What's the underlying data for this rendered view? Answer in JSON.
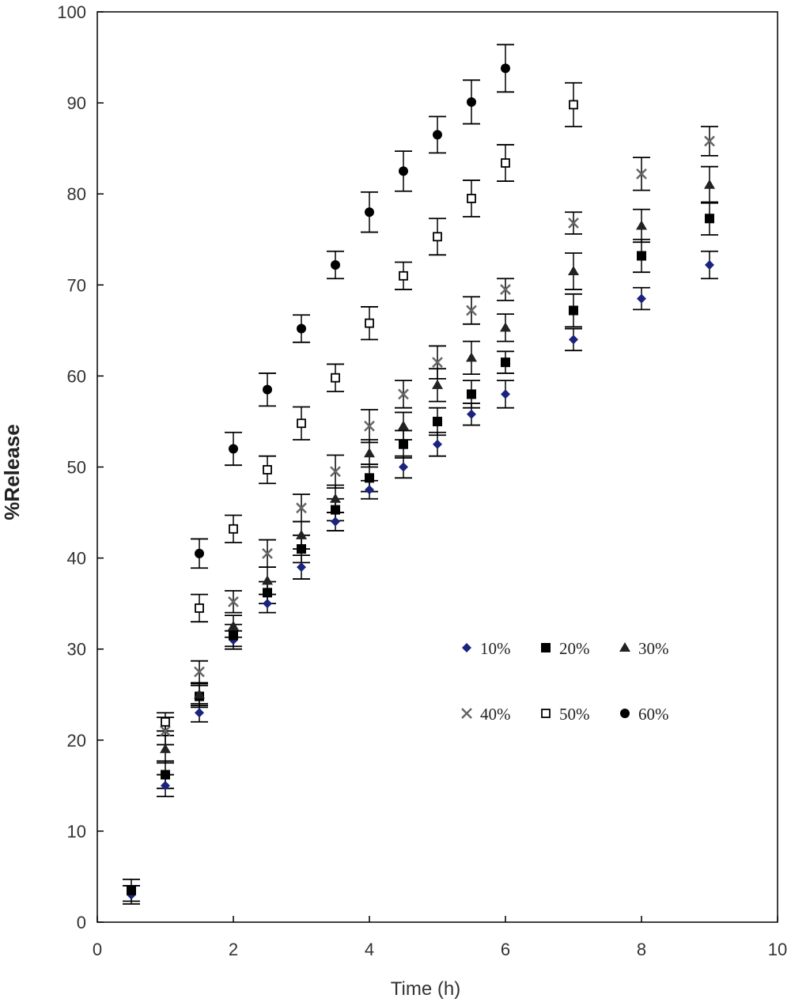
{
  "chart_data": {
    "type": "scatter",
    "title": "",
    "xlabel": "Time (h)",
    "ylabel": "%Release",
    "xlim": [
      0,
      10
    ],
    "ylim": [
      0,
      100
    ],
    "xticks": [
      0,
      2,
      4,
      6,
      8,
      10
    ],
    "yticks": [
      0,
      10,
      20,
      30,
      40,
      50,
      60,
      70,
      80,
      90,
      100
    ],
    "grid": false,
    "legend_position": "center-right",
    "series": [
      {
        "name": "10%",
        "marker": "diamond",
        "color": "#1a237e",
        "x": [
          0.5,
          1,
          1.5,
          2,
          2.5,
          3,
          3.5,
          4,
          4.5,
          5,
          5.5,
          6,
          7,
          8,
          9
        ],
        "y": [
          3,
          15,
          23,
          31,
          35,
          39,
          44,
          47.5,
          50,
          52.5,
          55.8,
          58,
          64,
          68.5,
          72.2
        ],
        "error": [
          1,
          1.2,
          1,
          1,
          1,
          1.3,
          1,
          1,
          1.2,
          1.3,
          1.2,
          1.5,
          1.2,
          1.2,
          1.5
        ]
      },
      {
        "name": "20%",
        "marker": "square",
        "color": "#000000",
        "x": [
          0.5,
          1,
          1.5,
          2,
          2.5,
          3,
          3.5,
          4,
          4.5,
          5,
          5.5,
          6,
          7,
          8,
          9
        ],
        "y": [
          3.5,
          16.2,
          24.8,
          31.5,
          36.2,
          41,
          45.3,
          48.8,
          52.5,
          55,
          58,
          61.5,
          67.2,
          73.2,
          77.3
        ],
        "error": [
          1.2,
          1.5,
          1.2,
          1.2,
          1.2,
          1.5,
          1.2,
          1.5,
          1.5,
          1.5,
          1.5,
          1.2,
          1.8,
          1.8,
          1.8
        ]
      },
      {
        "name": "30%",
        "marker": "triangle",
        "color": "#222222",
        "x": [
          1,
          1.5,
          2,
          2.5,
          3,
          3.5,
          4,
          4.5,
          5,
          5.5,
          6,
          7,
          8,
          9
        ],
        "y": [
          19,
          25,
          32.5,
          37.5,
          42.5,
          46.5,
          51.5,
          54.5,
          59,
          62,
          65.3,
          71.5,
          76.5,
          81
        ],
        "error": [
          1.5,
          1.2,
          1.2,
          1.5,
          1.5,
          1.5,
          1.5,
          1.5,
          1.8,
          1.8,
          1.5,
          2,
          1.8,
          2
        ]
      },
      {
        "name": "40%",
        "marker": "cross",
        "color": "#666666",
        "x": [
          1,
          1.5,
          2,
          2.5,
          3,
          3.5,
          4,
          4.5,
          5,
          5.5,
          6,
          7,
          8,
          9
        ],
        "y": [
          21,
          27.5,
          35.2,
          40.5,
          45.5,
          49.5,
          54.5,
          58,
          61.5,
          67.2,
          69.5,
          76.8,
          82.2,
          85.8
        ],
        "error": [
          1.5,
          1.2,
          1.2,
          1.5,
          1.5,
          1.8,
          1.8,
          1.5,
          1.8,
          1.5,
          1.2,
          1.2,
          1.8,
          1.6
        ]
      },
      {
        "name": "50%",
        "marker": "open-square",
        "color": "#000000",
        "x": [
          1,
          1.5,
          2,
          2.5,
          3,
          3.5,
          4,
          4.5,
          5,
          5.5,
          6,
          7
        ],
        "y": [
          22,
          34.5,
          43.2,
          49.7,
          54.8,
          59.8,
          65.8,
          71,
          75.3,
          79.5,
          83.4,
          89.8
        ],
        "error": [
          1,
          1.5,
          1.5,
          1.5,
          1.8,
          1.5,
          1.8,
          1.5,
          2,
          2,
          2,
          2.4
        ]
      },
      {
        "name": "60%",
        "marker": "circle",
        "color": "#000000",
        "x": [
          1.5,
          2,
          2.5,
          3,
          3.5,
          4,
          4.5,
          5,
          5.5,
          6
        ],
        "y": [
          40.5,
          52,
          58.5,
          65.2,
          72.2,
          78,
          82.5,
          86.5,
          90.1,
          93.8
        ],
        "error": [
          1.6,
          1.8,
          1.8,
          1.5,
          1.5,
          2.2,
          2.2,
          2,
          2.4,
          2.6
        ]
      }
    ]
  }
}
